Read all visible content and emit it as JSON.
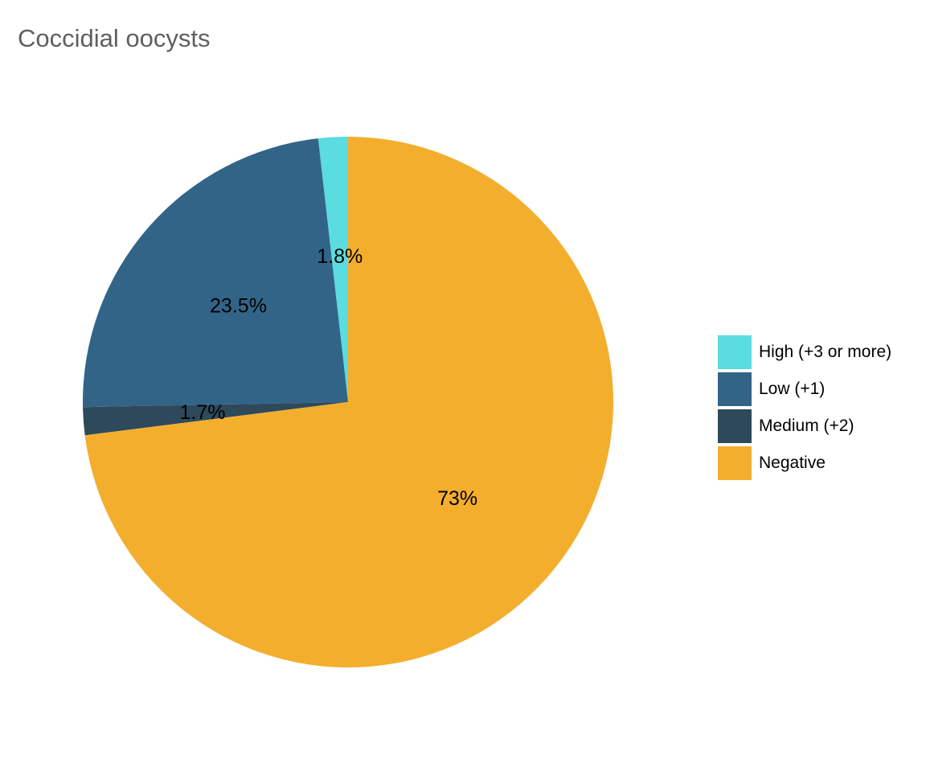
{
  "chart_data": {
    "type": "pie",
    "title": "Coccidial oocysts",
    "start_angle_deg": 0,
    "direction": "counterclockwise",
    "slices": [
      {
        "name": "High (+3 or more)",
        "value": 1.8,
        "label": "1.8%",
        "color": "#5BDCE0"
      },
      {
        "name": "Low (+1)",
        "value": 23.5,
        "label": "23.5%",
        "color": "#326488"
      },
      {
        "name": "Medium (+2)",
        "value": 1.7,
        "label": "1.7%",
        "color": "#2E4A5A"
      },
      {
        "name": "Negative",
        "value": 73,
        "label": "73%",
        "color": "#F4AE2E"
      }
    ],
    "legend": {
      "position": "right",
      "order": [
        "High (+3 or more)",
        "Low (+1)",
        "Medium (+2)",
        "Negative"
      ]
    }
  }
}
